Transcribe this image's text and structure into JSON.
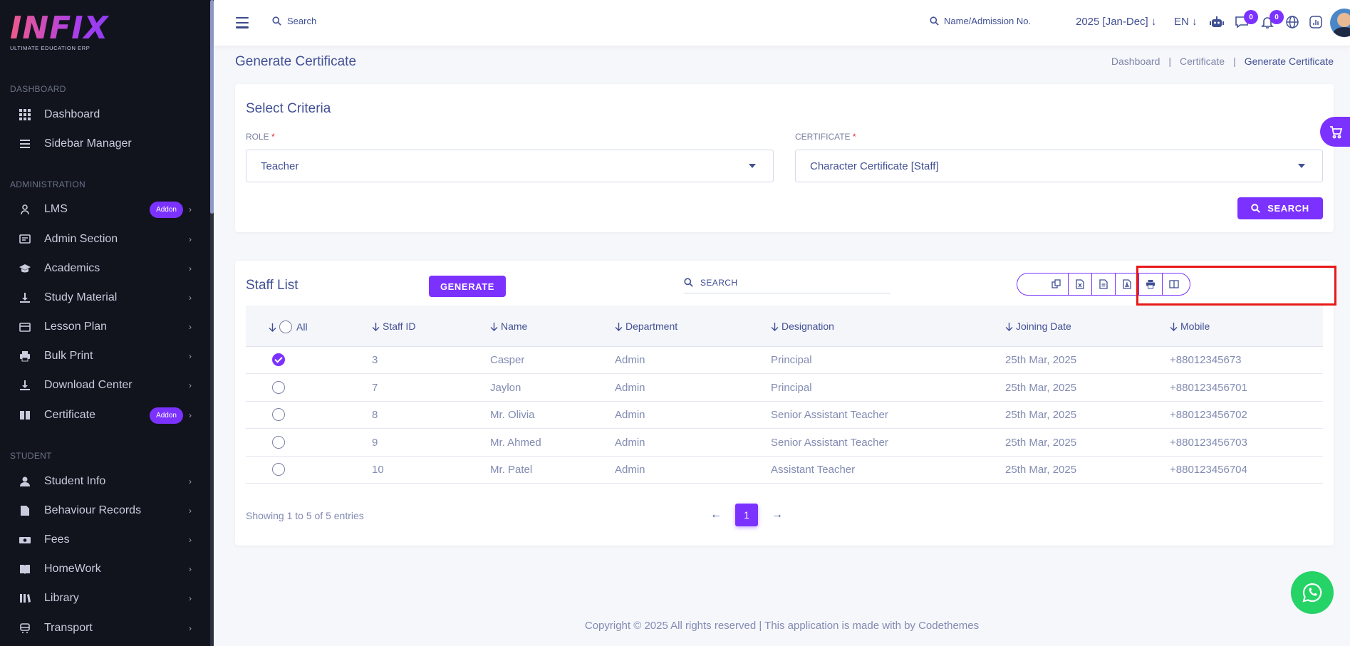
{
  "brand": {
    "logo_text": "INFIX",
    "tagline": "ULTIMATE EDUCATION ERP"
  },
  "colors": {
    "accent": "#7c32ff",
    "sidebar_bg": "#11141d",
    "text_primary": "#415094",
    "highlight_box": "#e81818",
    "whatsapp": "#25d366"
  },
  "sidebar": {
    "sections": [
      {
        "title": "DASHBOARD",
        "items": [
          {
            "label": "Dashboard",
            "icon": "grid-icon"
          },
          {
            "label": "Sidebar Manager",
            "icon": "list-icon"
          }
        ]
      },
      {
        "title": "ADMINISTRATION",
        "items": [
          {
            "label": "LMS",
            "icon": "user-graduate-icon",
            "badge": "Addon"
          },
          {
            "label": "Admin Section",
            "icon": "admin-icon"
          },
          {
            "label": "Academics",
            "icon": "graduation-cap-icon"
          },
          {
            "label": "Study Material",
            "icon": "download-icon"
          },
          {
            "label": "Lesson Plan",
            "icon": "calendar-icon"
          },
          {
            "label": "Bulk Print",
            "icon": "printer-icon"
          },
          {
            "label": "Download Center",
            "icon": "download-icon"
          },
          {
            "label": "Certificate",
            "icon": "book-icon",
            "badge": "Addon"
          }
        ]
      },
      {
        "title": "STUDENT",
        "items": [
          {
            "label": "Student Info",
            "icon": "user-icon"
          },
          {
            "label": "Behaviour Records",
            "icon": "file-icon"
          },
          {
            "label": "Fees",
            "icon": "money-icon"
          },
          {
            "label": "HomeWork",
            "icon": "homework-icon"
          },
          {
            "label": "Library",
            "icon": "library-icon"
          },
          {
            "label": "Transport",
            "icon": "transport-icon"
          }
        ]
      }
    ]
  },
  "header": {
    "search_label": "Search",
    "student_search_label": "Name/Admission No.",
    "year": "2025 [Jan-Dec]",
    "language": "EN",
    "chat_count": "0",
    "notification_count": "0"
  },
  "page": {
    "title": "Generate Certificate",
    "breadcrumbs": [
      "Dashboard",
      "Certificate",
      "Generate Certificate"
    ]
  },
  "criteria": {
    "title": "Select Criteria",
    "role_label": "ROLE",
    "role_value": "Teacher",
    "certificate_label": "CERTIFICATE",
    "certificate_value": "Character Certificate [Staff]",
    "required_mark": "*",
    "search_button": "SEARCH"
  },
  "staff_list": {
    "title": "Staff List",
    "generate_button": "GENERATE",
    "search_placeholder": "SEARCH",
    "export_buttons": [
      "copy-icon",
      "excel-icon",
      "csv-icon",
      "pdf-icon",
      "print-icon",
      "columns-icon"
    ],
    "columns": [
      "All",
      "Staff ID",
      "Name",
      "Department",
      "Designation",
      "Joining Date",
      "Mobile"
    ],
    "rows": [
      {
        "checked": true,
        "staff_id": "3",
        "name": "Casper",
        "department": "Admin",
        "designation": "Principal",
        "joining_date": "25th Mar, 2025",
        "mobile": "+88012345673"
      },
      {
        "checked": false,
        "staff_id": "7",
        "name": "Jaylon",
        "department": "Admin",
        "designation": "Principal",
        "joining_date": "25th Mar, 2025",
        "mobile": "+880123456701"
      },
      {
        "checked": false,
        "staff_id": "8",
        "name": "Mr. Olivia",
        "department": "Admin",
        "designation": "Senior Assistant Teacher",
        "joining_date": "25th Mar, 2025",
        "mobile": "+880123456702"
      },
      {
        "checked": false,
        "staff_id": "9",
        "name": "Mr. Ahmed",
        "department": "Admin",
        "designation": "Senior Assistant Teacher",
        "joining_date": "25th Mar, 2025",
        "mobile": "+880123456703"
      },
      {
        "checked": false,
        "staff_id": "10",
        "name": "Mr. Patel",
        "department": "Admin",
        "designation": "Assistant Teacher",
        "joining_date": "25th Mar, 2025",
        "mobile": "+880123456704"
      }
    ],
    "info": "Showing 1 to 5 of 5 entries",
    "current_page": "1"
  },
  "footer": {
    "copyright": "Copyright © 2025 All rights reserved | This application is made with by Codethemes"
  }
}
